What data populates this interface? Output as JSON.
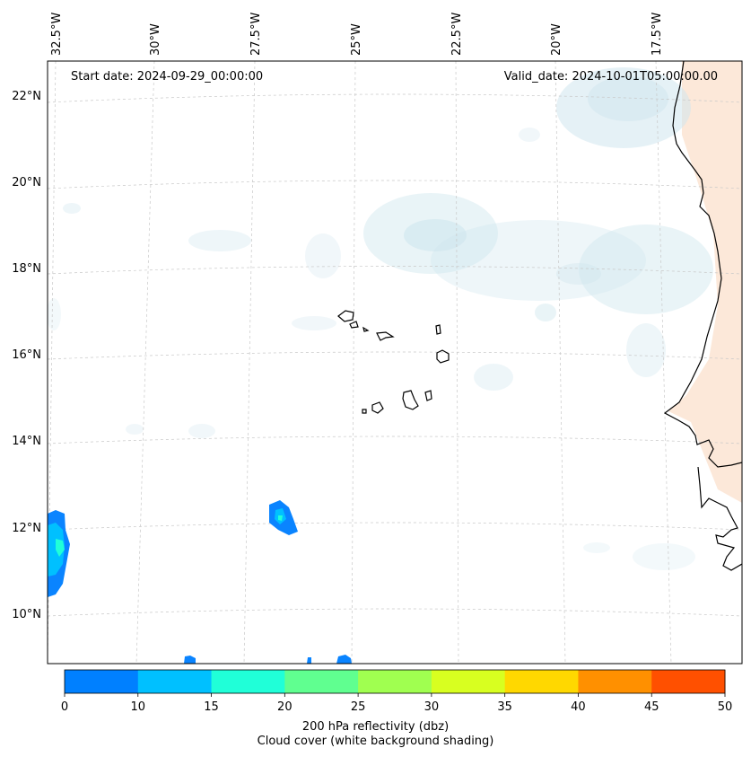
{
  "annotations": {
    "start_date": "Start date: 2024-09-29_00:00:00",
    "valid_date": "Valid_date: 2024-10-01T05:00:00.00"
  },
  "axes": {
    "lon_labels": [
      "32.5°W",
      "30°W",
      "27.5°W",
      "25°W",
      "22.5°W",
      "20°W",
      "17.5°W"
    ],
    "lat_labels": [
      "22°N",
      "20°N",
      "18°N",
      "16°N",
      "14°N",
      "12°N",
      "10°N"
    ]
  },
  "colorbar": {
    "colors": [
      "#0080ff",
      "#00c0ff",
      "#20ffd8",
      "#60ff90",
      "#a0ff50",
      "#d8ff20",
      "#ffd800",
      "#ff9000",
      "#ff5000"
    ],
    "ticks": [
      "0",
      "10",
      "15",
      "20",
      "25",
      "30",
      "35",
      "40",
      "45",
      "50"
    ],
    "label": "200 hPa reflectivity (dbz)",
    "sublabel": "Cloud cover (white background shading)"
  },
  "palette": {
    "cloud": "#cfe6ee",
    "land": "#fbe0cc",
    "refl_low": "#0a84ff",
    "refl_mid": "#00c0ff",
    "refl_high": "#20ffd8",
    "grid": "#c8c8c8"
  }
}
